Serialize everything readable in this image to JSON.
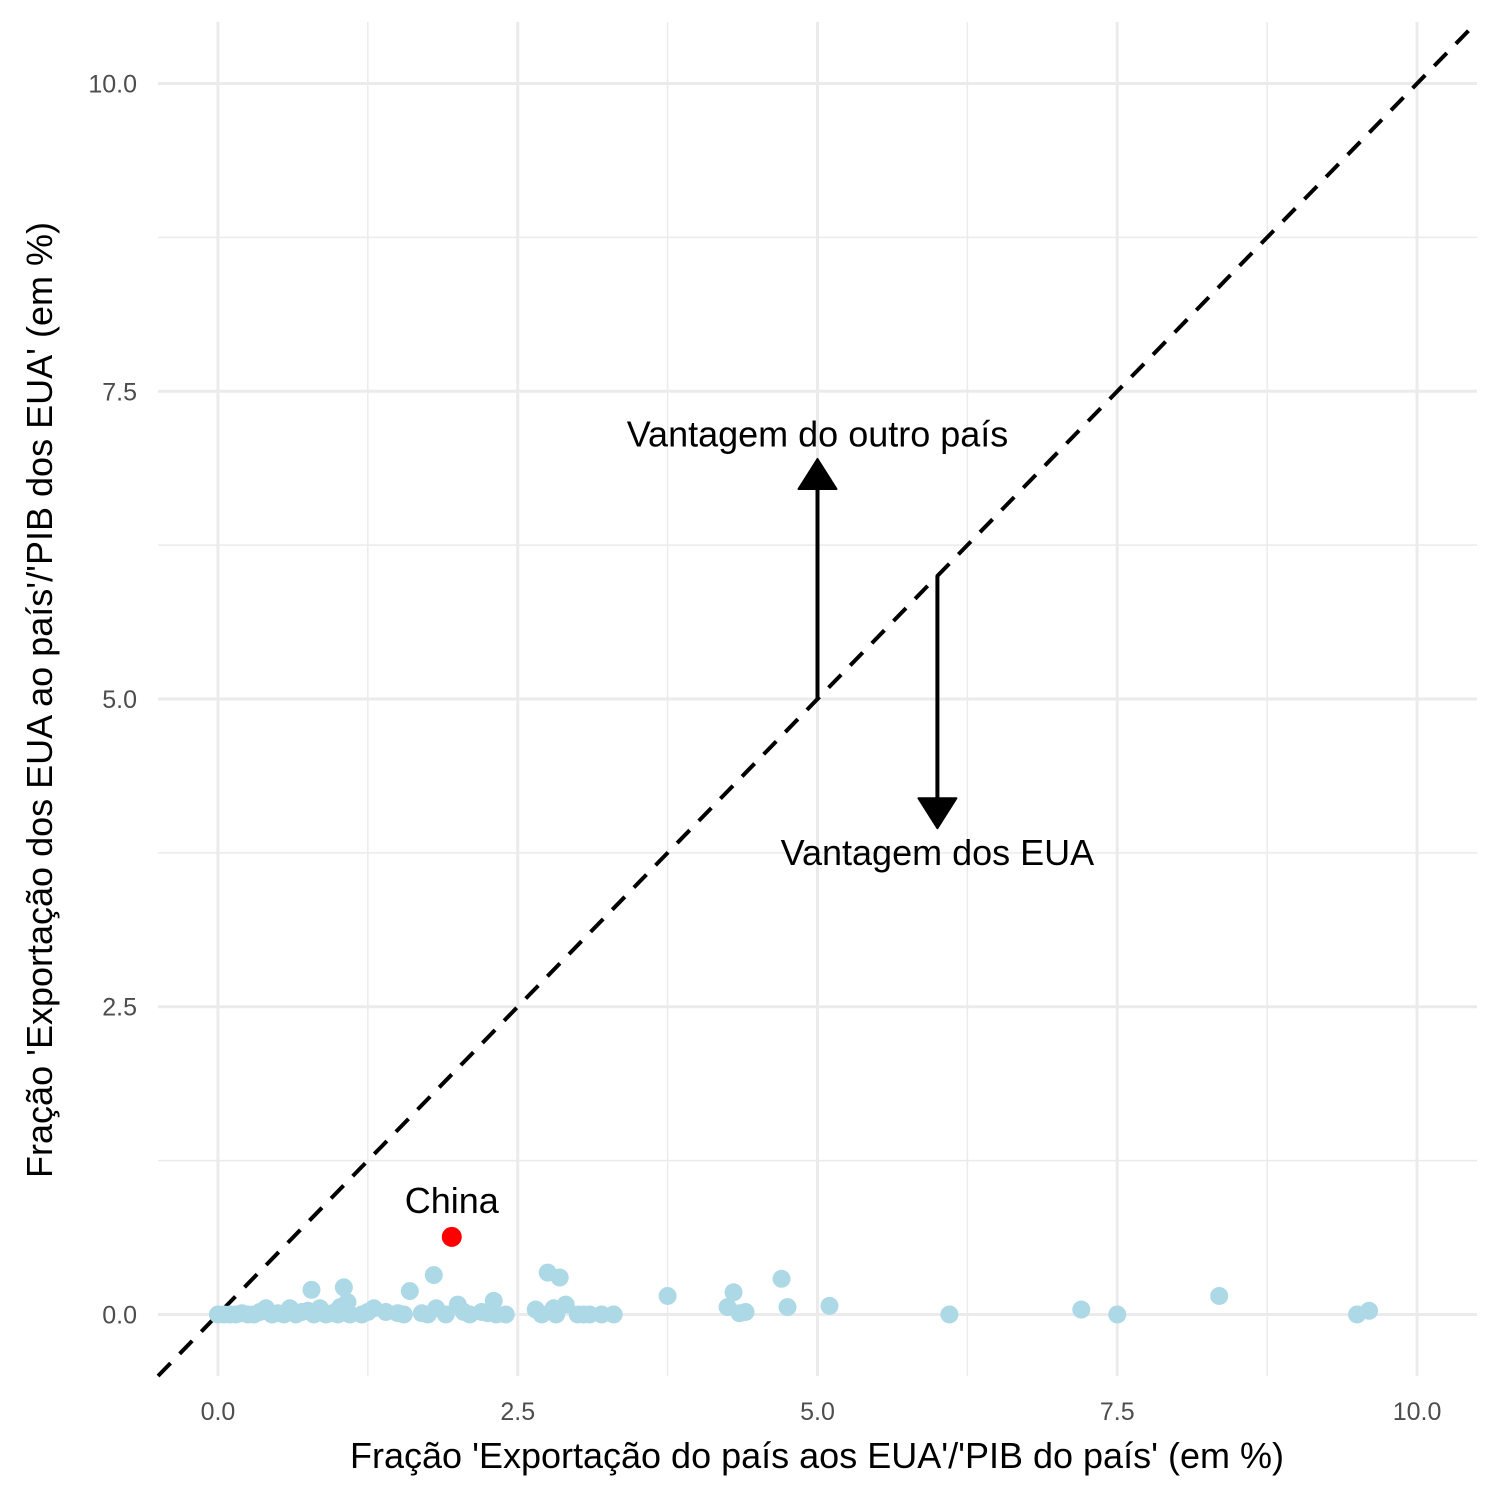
{
  "chart_data": {
    "type": "scatter",
    "title": "",
    "xlabel": "Fração 'Exportação do país aos EUA'/'PIB do país' (em %)",
    "ylabel": "Fração 'Exportação dos EUA ao país'/'PIB dos EUA' (em %)",
    "xlim": [
      -0.5,
      10.5
    ],
    "ylim": [
      -0.5,
      10.5
    ],
    "xticks": [
      0,
      2.5,
      5,
      7.5,
      10
    ],
    "yticks": [
      0,
      2.5,
      5,
      7.5,
      10
    ],
    "xtick_labels": [
      "0.0",
      "2.5",
      "5.0",
      "7.5",
      "10.0"
    ],
    "ytick_labels": [
      "0.0",
      "2.5",
      "5.0",
      "7.5",
      "10.0"
    ],
    "grid": true,
    "reference_line": {
      "type": "identity",
      "style": "dashed",
      "color": "#000000"
    },
    "point_color": "#add8e6",
    "highlight_color": "#ff0000",
    "points": [
      [
        0.0,
        0.0
      ],
      [
        0.05,
        0.0
      ],
      [
        0.1,
        0.0
      ],
      [
        0.15,
        0.0
      ],
      [
        0.2,
        0.01
      ],
      [
        0.25,
        0.0
      ],
      [
        0.3,
        0.0
      ],
      [
        0.35,
        0.02
      ],
      [
        0.4,
        0.05
      ],
      [
        0.45,
        0.0
      ],
      [
        0.5,
        0.01
      ],
      [
        0.55,
        0.0
      ],
      [
        0.6,
        0.05
      ],
      [
        0.65,
        0.0
      ],
      [
        0.7,
        0.02
      ],
      [
        0.75,
        0.03
      ],
      [
        0.78,
        0.2
      ],
      [
        0.8,
        0.0
      ],
      [
        0.85,
        0.05
      ],
      [
        0.9,
        0.0
      ],
      [
        0.95,
        0.01
      ],
      [
        1.0,
        0.0
      ],
      [
        1.02,
        0.06
      ],
      [
        1.05,
        0.22
      ],
      [
        1.08,
        0.1
      ],
      [
        1.1,
        0.0
      ],
      [
        1.2,
        0.0
      ],
      [
        1.25,
        0.02
      ],
      [
        1.3,
        0.05
      ],
      [
        1.4,
        0.02
      ],
      [
        1.5,
        0.01
      ],
      [
        1.55,
        0.0
      ],
      [
        1.6,
        0.19
      ],
      [
        1.7,
        0.01
      ],
      [
        1.75,
        0.0
      ],
      [
        1.8,
        0.32
      ],
      [
        1.82,
        0.05
      ],
      [
        1.9,
        0.0
      ],
      [
        2.0,
        0.08
      ],
      [
        2.05,
        0.02
      ],
      [
        2.1,
        0.0
      ],
      [
        2.2,
        0.02
      ],
      [
        2.25,
        0.01
      ],
      [
        2.3,
        0.11
      ],
      [
        2.32,
        0.0
      ],
      [
        2.4,
        0.0
      ],
      [
        2.65,
        0.04
      ],
      [
        2.7,
        0.0
      ],
      [
        2.75,
        0.34
      ],
      [
        2.8,
        0.05
      ],
      [
        2.82,
        0.0
      ],
      [
        2.85,
        0.3
      ],
      [
        2.9,
        0.08
      ],
      [
        3.0,
        0.0
      ],
      [
        3.05,
        0.0
      ],
      [
        3.1,
        0.0
      ],
      [
        3.2,
        0.0
      ],
      [
        3.3,
        0.0
      ],
      [
        3.75,
        0.15
      ],
      [
        4.25,
        0.06
      ],
      [
        4.3,
        0.18
      ],
      [
        4.35,
        0.01
      ],
      [
        4.4,
        0.02
      ],
      [
        4.7,
        0.29
      ],
      [
        4.75,
        0.06
      ],
      [
        5.1,
        0.07
      ],
      [
        6.1,
        0.0
      ],
      [
        7.2,
        0.04
      ],
      [
        7.5,
        0.0
      ],
      [
        8.35,
        0.15
      ],
      [
        9.5,
        0.0
      ],
      [
        9.6,
        0.03
      ]
    ],
    "highlight": {
      "label": "China",
      "x": 1.95,
      "y": 0.63
    },
    "annotations": [
      {
        "text": "Vantagem do outro país",
        "x": 5.0,
        "y": 7.15,
        "arrow_from": [
          5.0,
          5.0
        ],
        "arrow_to": [
          5.0,
          6.95
        ]
      },
      {
        "text": "Vantagem dos EUA",
        "x": 6.0,
        "y": 3.75,
        "arrow_from": [
          6.0,
          6.0
        ],
        "arrow_to": [
          6.0,
          3.95
        ]
      }
    ]
  }
}
